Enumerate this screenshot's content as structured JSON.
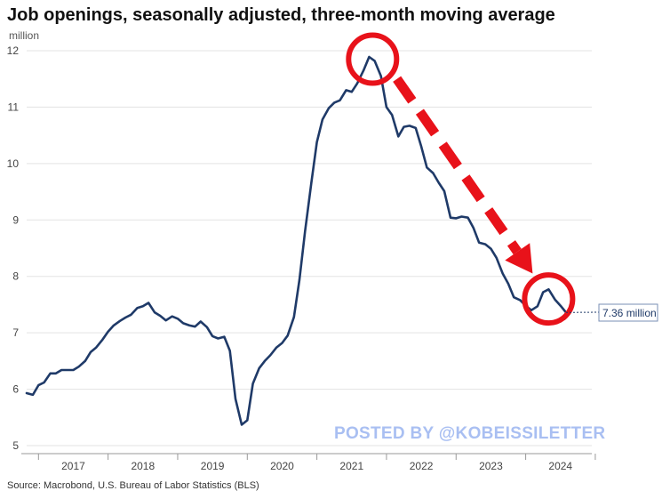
{
  "header": {
    "title": "Job openings, seasonally adjusted, three-month moving average",
    "unit_label": "million"
  },
  "source": "Source: Macrobond, U.S. Bureau of Labor Statistics (BLS)",
  "watermark": "POSTED BY @KOBEISSILETTER",
  "end_label": "7.36 million",
  "colors": {
    "line": "#1f3a68",
    "grid": "#e3e3e3",
    "annotation": "#e8121a",
    "watermark": "#a9bff2"
  },
  "chart_data": {
    "type": "line",
    "title": "Job openings, seasonally adjusted, three-month moving average",
    "ylabel": "million",
    "ylim": [
      5,
      12
    ],
    "yticks": [
      5,
      6,
      7,
      8,
      9,
      10,
      11,
      12
    ],
    "xlim": [
      2016.83,
      2024.95
    ],
    "xtick_labels": [
      "2017",
      "2018",
      "2019",
      "2020",
      "2021",
      "2022",
      "2023",
      "2024"
    ],
    "grid": "horizontal",
    "series": [
      {
        "values": [
          [
            2016.83,
            5.93
          ],
          [
            2016.92,
            5.9
          ],
          [
            2017.0,
            6.07
          ],
          [
            2017.08,
            6.12
          ],
          [
            2017.17,
            6.28
          ],
          [
            2017.25,
            6.28
          ],
          [
            2017.33,
            6.34
          ],
          [
            2017.42,
            6.34
          ],
          [
            2017.5,
            6.34
          ],
          [
            2017.58,
            6.4
          ],
          [
            2017.67,
            6.5
          ],
          [
            2017.75,
            6.66
          ],
          [
            2017.83,
            6.74
          ],
          [
            2017.92,
            6.88
          ],
          [
            2018.0,
            7.02
          ],
          [
            2018.08,
            7.13
          ],
          [
            2018.17,
            7.21
          ],
          [
            2018.25,
            7.27
          ],
          [
            2018.33,
            7.32
          ],
          [
            2018.42,
            7.44
          ],
          [
            2018.5,
            7.47
          ],
          [
            2018.58,
            7.53
          ],
          [
            2018.67,
            7.36
          ],
          [
            2018.75,
            7.3
          ],
          [
            2018.83,
            7.22
          ],
          [
            2018.92,
            7.29
          ],
          [
            2019.0,
            7.25
          ],
          [
            2019.08,
            7.17
          ],
          [
            2019.17,
            7.13
          ],
          [
            2019.25,
            7.11
          ],
          [
            2019.33,
            7.2
          ],
          [
            2019.42,
            7.1
          ],
          [
            2019.5,
            6.94
          ],
          [
            2019.58,
            6.9
          ],
          [
            2019.67,
            6.93
          ],
          [
            2019.75,
            6.68
          ],
          [
            2019.83,
            5.83
          ],
          [
            2019.92,
            5.37
          ],
          [
            2020.0,
            5.45
          ],
          [
            2020.08,
            6.1
          ],
          [
            2020.17,
            6.37
          ],
          [
            2020.25,
            6.5
          ],
          [
            2020.33,
            6.6
          ],
          [
            2020.42,
            6.74
          ],
          [
            2020.5,
            6.82
          ],
          [
            2020.58,
            6.95
          ],
          [
            2020.67,
            7.28
          ],
          [
            2020.75,
            7.94
          ],
          [
            2020.83,
            8.8
          ],
          [
            2020.92,
            9.65
          ],
          [
            2021.0,
            10.38
          ],
          [
            2021.08,
            10.78
          ],
          [
            2021.17,
            10.98
          ],
          [
            2021.25,
            11.08
          ],
          [
            2021.33,
            11.12
          ],
          [
            2021.42,
            11.3
          ],
          [
            2021.5,
            11.27
          ],
          [
            2021.58,
            11.42
          ],
          [
            2021.67,
            11.65
          ],
          [
            2021.75,
            11.89
          ],
          [
            2021.83,
            11.82
          ],
          [
            2021.92,
            11.55
          ],
          [
            2022.0,
            11.0
          ],
          [
            2022.08,
            10.86
          ],
          [
            2022.17,
            10.48
          ],
          [
            2022.25,
            10.65
          ],
          [
            2022.33,
            10.67
          ],
          [
            2022.42,
            10.63
          ],
          [
            2022.5,
            10.3
          ],
          [
            2022.58,
            9.93
          ],
          [
            2022.67,
            9.83
          ],
          [
            2022.75,
            9.66
          ],
          [
            2022.83,
            9.51
          ],
          [
            2022.92,
            9.04
          ],
          [
            2023.0,
            9.03
          ],
          [
            2023.08,
            9.06
          ],
          [
            2023.17,
            9.04
          ],
          [
            2023.25,
            8.86
          ],
          [
            2023.33,
            8.6
          ],
          [
            2023.42,
            8.57
          ],
          [
            2023.5,
            8.49
          ],
          [
            2023.58,
            8.33
          ],
          [
            2023.67,
            8.05
          ],
          [
            2023.75,
            7.87
          ],
          [
            2023.83,
            7.63
          ],
          [
            2023.92,
            7.58
          ],
          [
            2024.0,
            7.48
          ],
          [
            2024.08,
            7.4
          ],
          [
            2024.17,
            7.47
          ],
          [
            2024.25,
            7.72
          ],
          [
            2024.33,
            7.77
          ],
          [
            2024.42,
            7.59
          ],
          [
            2024.5,
            7.48
          ],
          [
            2024.58,
            7.36
          ]
        ]
      }
    ],
    "annotations": [
      {
        "type": "circle",
        "at": [
          2021.8,
          11.85
        ]
      },
      {
        "type": "circle",
        "at": [
          2024.33,
          7.6
        ]
      },
      {
        "type": "dashed-arrow",
        "from": [
          2022.15,
          11.5
        ],
        "to": [
          2024.1,
          8.05
        ]
      }
    ]
  }
}
